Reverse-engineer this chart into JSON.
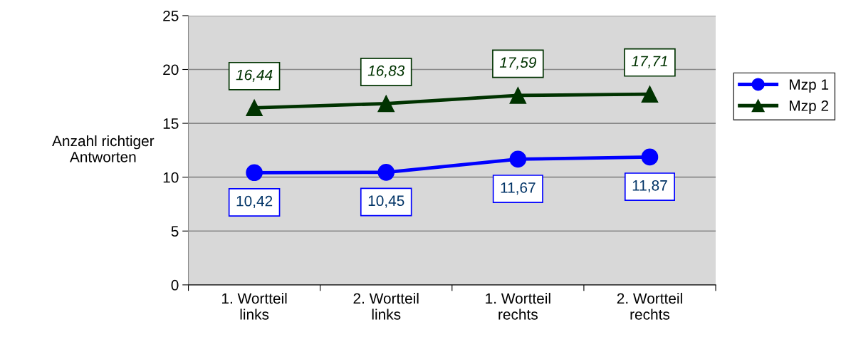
{
  "chart_data": {
    "type": "line",
    "ylabel": "Anzahl richtiger\nAntworten",
    "categories": [
      "1. Wortteil\nlinks",
      "2. Wortteil\nlinks",
      "1. Wortteil\nrechts",
      "2. Wortteil\nrechts"
    ],
    "series": [
      {
        "name": "Mzp 1",
        "color": "#0000ff",
        "marker": "circle",
        "values": [
          10.42,
          10.45,
          11.67,
          11.87
        ],
        "value_labels": [
          "10,42",
          "10,45",
          "11,67",
          "11,87"
        ]
      },
      {
        "name": "Mzp 2",
        "color": "#003300",
        "marker": "triangle",
        "values": [
          16.44,
          16.83,
          17.59,
          17.71
        ],
        "value_labels": [
          "16,44",
          "16,83",
          "17,59",
          "17,71"
        ]
      }
    ],
    "ylim": [
      0,
      25
    ],
    "yticks": [
      0,
      5,
      10,
      15,
      20,
      25
    ],
    "grid": "y",
    "legend": "right"
  }
}
